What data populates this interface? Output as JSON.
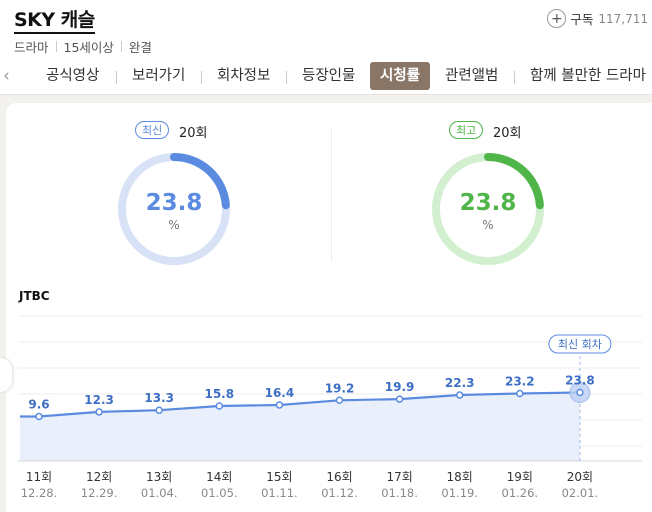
{
  "header": {
    "title": "SKY 캐슬",
    "meta": [
      "드라마",
      "15세이상",
      "완결"
    ],
    "subscribe_label": "구독",
    "subscribe_count": "117,711"
  },
  "tabs": [
    "공식영상",
    "보러가기",
    "회차정보",
    "등장인물",
    "시청률",
    "관련앨범",
    "함께 볼만한 드라마"
  ],
  "active_tab": "시청률",
  "summary": {
    "latest": {
      "badge": "최신",
      "episode": "20회",
      "rating": "23.8",
      "unit": "%",
      "fraction": 0.238,
      "color": "#5b8be0",
      "track": "#d7e2f6"
    },
    "highest": {
      "badge": "최고",
      "episode": "20회",
      "rating": "23.8",
      "unit": "%",
      "fraction": 0.238,
      "color": "#4fb548",
      "track": "#d2efcf"
    }
  },
  "broadcaster": "JTBC",
  "chart_data": {
    "type": "line",
    "episodes": [
      "11회",
      "12회",
      "13회",
      "14회",
      "15회",
      "16회",
      "17회",
      "18회",
      "19회",
      "20회"
    ],
    "dates": [
      "12.28.",
      "12.29.",
      "01.04.",
      "01.05.",
      "01.11.",
      "01.12.",
      "01.18.",
      "01.19.",
      "01.26.",
      "02.01."
    ],
    "values": [
      9.6,
      12.3,
      13.3,
      15.8,
      16.4,
      19.2,
      19.9,
      22.3,
      23.2,
      23.8
    ],
    "value_labels": [
      "9.6",
      "12.3",
      "13.3",
      "15.8",
      "16.4",
      "19.2",
      "19.9",
      "22.3",
      "23.2",
      "23.8"
    ],
    "latest_label": "최신 회차",
    "color": "#5b8be0"
  }
}
